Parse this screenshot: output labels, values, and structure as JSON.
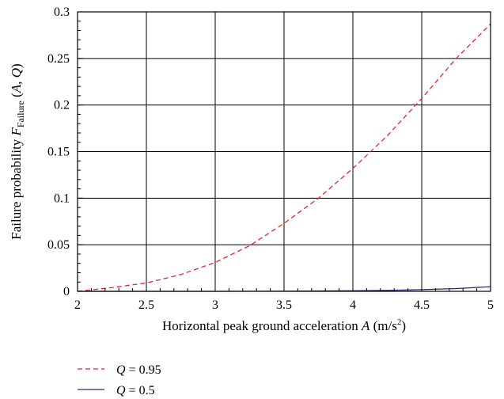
{
  "chart_data": {
    "type": "line",
    "title": "",
    "xlabel": "Horizontal peak ground acceleration A (m/s²)",
    "ylabel": "Failure probability F_Failure (A, Q)",
    "xlabel_parts": {
      "text": "Horizontal peak ground acceleration ",
      "var": "A",
      "unit_pre": " (m/s",
      "unit_sup": "2",
      "unit_post": ")"
    },
    "ylabel_parts": {
      "text": "Failure probability ",
      "var": "F",
      "sub": "Failure",
      "args_pre": " (",
      "arg1": "A",
      "sep": ", ",
      "arg2": "Q",
      "args_post": ")"
    },
    "xlim": [
      2,
      5
    ],
    "ylim": [
      0,
      0.3
    ],
    "x_ticks": [
      2,
      2.5,
      3,
      3.5,
      4,
      4.5,
      5
    ],
    "x_tick_labels": [
      "2",
      "2.5",
      "3",
      "3.5",
      "4",
      "4.5",
      "5"
    ],
    "y_ticks": [
      0,
      0.05,
      0.1,
      0.15,
      0.2,
      0.25,
      0.3
    ],
    "y_tick_labels": [
      "0",
      "0.05",
      "0.1",
      "0.15",
      "0.2",
      "0.25",
      "0.3"
    ],
    "grid": true,
    "legend_position": "below",
    "series": [
      {
        "name": "Q = 0.95",
        "name_parts": {
          "var": "Q",
          "rest": " = 0.95"
        },
        "color": "#e8262b",
        "dash": "dashed",
        "x": [
          2.0,
          2.25,
          2.5,
          2.75,
          3.0,
          3.25,
          3.5,
          3.75,
          4.0,
          4.25,
          4.5,
          4.75,
          5.0
        ],
        "y": [
          0.0,
          0.004,
          0.009,
          0.018,
          0.031,
          0.049,
          0.073,
          0.1,
          0.132,
          0.167,
          0.207,
          0.25,
          0.287
        ]
      },
      {
        "name": "Q = 0.5",
        "name_parts": {
          "var": "Q",
          "rest": " = 0.5"
        },
        "color": "#2b2b6b",
        "dash": "solid",
        "x": [
          2.0,
          2.5,
          3.0,
          3.5,
          4.0,
          4.25,
          4.5,
          4.75,
          5.0
        ],
        "y": [
          0.0,
          0.0,
          0.0,
          0.0002,
          0.0006,
          0.001,
          0.0018,
          0.003,
          0.005
        ]
      }
    ]
  }
}
